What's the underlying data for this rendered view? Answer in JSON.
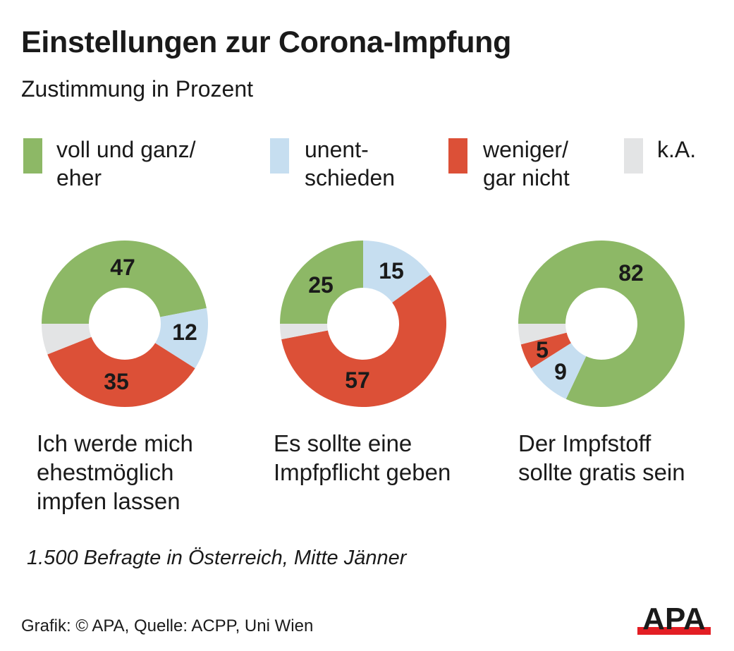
{
  "colors": {
    "green": "#8db866",
    "blue": "#c6def0",
    "red": "#dc5037",
    "grey": "#e3e4e5"
  },
  "chart_data": {
    "type": "pie",
    "title": "Einstellungen zur Corona-Impfung",
    "subtitle": "Zustimmung in Prozent",
    "legend": [
      "voll und ganz/\neher",
      "unent-\nschieden",
      "weniger/\ngar nicht",
      "k.A."
    ],
    "legend_placement": "top",
    "charts": [
      {
        "caption": "Ich werde mich\nehestmöglich\nimpfen lassen",
        "values": {
          "voll und ganz/eher": 47,
          "unentschieden": 12,
          "weniger/gar nicht": 35,
          "k.A.": 6
        }
      },
      {
        "caption": "Es sollte eine\nImpfpflicht geben",
        "values": {
          "voll und ganz/eher": 25,
          "unentschieden": 15,
          "weniger/gar nicht": 57,
          "k.A.": 3
        }
      },
      {
        "caption": "Der Impfstoff\nsollte gratis sein",
        "values": {
          "voll und ganz/eher": 82,
          "unentschieden": 9,
          "weniger/gar nicht": 5,
          "k.A.": 4
        }
      }
    ]
  },
  "note": "1.500 Befragte in Österreich, Mitte Jänner",
  "credit": "Grafik: © APA, Quelle: ACPP, Uni Wien",
  "logo": "APA"
}
